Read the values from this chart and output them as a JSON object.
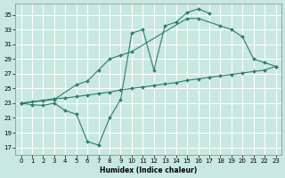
{
  "xlabel": "Humidex (Indice chaleur)",
  "background_color": "#c8e8e0",
  "grid_color": "#ffffff",
  "line_color": "#2e7d6e",
  "xlim": [
    -0.5,
    23.5
  ],
  "ylim": [
    16,
    36.5
  ],
  "yticks": [
    17,
    19,
    21,
    23,
    25,
    27,
    29,
    31,
    33,
    35
  ],
  "xticks": [
    0,
    1,
    2,
    3,
    4,
    5,
    6,
    7,
    8,
    9,
    10,
    11,
    12,
    13,
    14,
    15,
    16,
    17,
    18,
    19,
    20,
    21,
    22,
    23
  ],
  "series1_x": [
    0,
    1,
    2,
    3,
    4,
    5,
    6,
    7,
    8,
    9,
    10,
    11,
    12,
    13,
    14,
    15,
    16,
    17
  ],
  "series1_y": [
    23,
    22.8,
    22.7,
    23,
    22,
    21.5,
    17.8,
    17.3,
    21,
    23.5,
    32.5,
    33,
    27.5,
    33.5,
    34,
    35.3,
    35.8,
    35.2
  ],
  "series2_x": [
    0,
    3,
    5,
    6,
    7,
    8,
    9,
    10,
    15,
    16,
    18,
    19,
    20,
    21,
    22,
    23
  ],
  "series2_y": [
    23,
    23.5,
    25.5,
    26,
    27.5,
    29,
    29.5,
    30,
    34.5,
    34.5,
    33.5,
    33,
    32,
    29,
    28.5,
    28
  ],
  "series3_x": [
    0,
    1,
    2,
    3,
    4,
    5,
    6,
    7,
    8,
    9,
    10,
    11,
    12,
    13,
    14,
    15,
    16,
    17,
    18,
    19,
    20,
    21,
    22,
    23
  ],
  "series3_y": [
    23,
    23.2,
    23.4,
    23.6,
    23.7,
    23.9,
    24.1,
    24.3,
    24.5,
    24.8,
    25.0,
    25.2,
    25.4,
    25.6,
    25.8,
    26.1,
    26.3,
    26.5,
    26.7,
    26.9,
    27.1,
    27.3,
    27.5,
    28.0
  ]
}
